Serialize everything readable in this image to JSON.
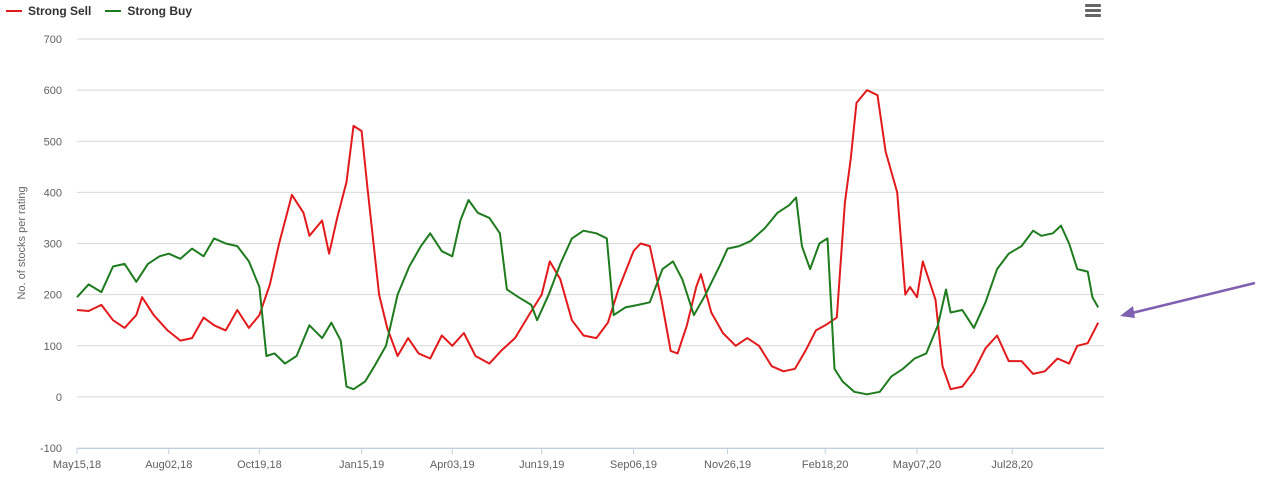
{
  "chart_data": {
    "type": "line",
    "ylabel": "No. of stocks per rating",
    "ylim": [
      -100,
      700
    ],
    "yticks": [
      -100,
      0,
      100,
      200,
      300,
      400,
      500,
      600,
      700
    ],
    "xlim": [
      "2018-05-15",
      "2020-10-15"
    ],
    "xticks": [
      {
        "date": "2018-05-15",
        "label": "May15,18"
      },
      {
        "date": "2018-08-02",
        "label": "Aug02,18"
      },
      {
        "date": "2018-10-19",
        "label": "Oct19,18"
      },
      {
        "date": "2019-01-15",
        "label": "Jan15,19"
      },
      {
        "date": "2019-04-03",
        "label": "Apr03,19"
      },
      {
        "date": "2019-06-19",
        "label": "Jun19,19"
      },
      {
        "date": "2019-09-06",
        "label": "Sep06,19"
      },
      {
        "date": "2019-11-26",
        "label": "Nov26,19"
      },
      {
        "date": "2020-02-18",
        "label": "Feb18,20"
      },
      {
        "date": "2020-05-07",
        "label": "May07,20"
      },
      {
        "date": "2020-07-28",
        "label": "Jul28,20"
      }
    ],
    "grid": true,
    "legend": "top-left",
    "series": [
      {
        "name": "Strong Sell",
        "color": "#e31a1c",
        "points": [
          [
            "2018-05-15",
            170
          ],
          [
            "2018-05-25",
            168
          ],
          [
            "2018-06-05",
            180
          ],
          [
            "2018-06-15",
            150
          ],
          [
            "2018-06-25",
            135
          ],
          [
            "2018-07-05",
            160
          ],
          [
            "2018-07-10",
            195
          ],
          [
            "2018-07-20",
            160
          ],
          [
            "2018-08-01",
            130
          ],
          [
            "2018-08-12",
            110
          ],
          [
            "2018-08-22",
            115
          ],
          [
            "2018-09-01",
            155
          ],
          [
            "2018-09-10",
            140
          ],
          [
            "2018-09-20",
            130
          ],
          [
            "2018-09-30",
            170
          ],
          [
            "2018-10-10",
            135
          ],
          [
            "2018-10-19",
            160
          ],
          [
            "2018-10-28",
            220
          ],
          [
            "2018-11-05",
            300
          ],
          [
            "2018-11-16",
            395
          ],
          [
            "2018-11-26",
            360
          ],
          [
            "2018-12-01",
            315
          ],
          [
            "2018-12-12",
            345
          ],
          [
            "2018-12-18",
            280
          ],
          [
            "2018-12-25",
            350
          ],
          [
            "2019-01-02",
            420
          ],
          [
            "2019-01-08",
            530
          ],
          [
            "2019-01-15",
            520
          ],
          [
            "2019-01-20",
            410
          ],
          [
            "2019-01-30",
            200
          ],
          [
            "2019-02-06",
            135
          ],
          [
            "2019-02-15",
            80
          ],
          [
            "2019-02-24",
            115
          ],
          [
            "2019-03-05",
            85
          ],
          [
            "2019-03-15",
            75
          ],
          [
            "2019-03-25",
            120
          ],
          [
            "2019-04-03",
            100
          ],
          [
            "2019-04-13",
            125
          ],
          [
            "2019-04-23",
            80
          ],
          [
            "2019-05-05",
            65
          ],
          [
            "2019-05-15",
            90
          ],
          [
            "2019-05-27",
            115
          ],
          [
            "2019-06-08",
            160
          ],
          [
            "2019-06-19",
            200
          ],
          [
            "2019-06-26",
            265
          ],
          [
            "2019-07-05",
            230
          ],
          [
            "2019-07-15",
            150
          ],
          [
            "2019-07-25",
            120
          ],
          [
            "2019-08-05",
            115
          ],
          [
            "2019-08-15",
            145
          ],
          [
            "2019-08-24",
            210
          ],
          [
            "2019-09-06",
            285
          ],
          [
            "2019-09-12",
            300
          ],
          [
            "2019-09-20",
            295
          ],
          [
            "2019-09-30",
            190
          ],
          [
            "2019-10-08",
            90
          ],
          [
            "2019-10-14",
            85
          ],
          [
            "2019-10-22",
            140
          ],
          [
            "2019-10-30",
            215
          ],
          [
            "2019-11-03",
            240
          ],
          [
            "2019-11-12",
            165
          ],
          [
            "2019-11-22",
            125
          ],
          [
            "2019-12-03",
            100
          ],
          [
            "2019-12-13",
            115
          ],
          [
            "2019-12-23",
            100
          ],
          [
            "2020-01-03",
            60
          ],
          [
            "2020-01-13",
            50
          ],
          [
            "2020-01-23",
            55
          ],
          [
            "2020-02-01",
            90
          ],
          [
            "2020-02-10",
            130
          ],
          [
            "2020-02-18",
            140
          ],
          [
            "2020-02-28",
            155
          ],
          [
            "2020-03-06",
            380
          ],
          [
            "2020-03-11",
            465
          ],
          [
            "2020-03-16",
            575
          ],
          [
            "2020-03-25",
            600
          ],
          [
            "2020-04-03",
            590
          ],
          [
            "2020-04-10",
            480
          ],
          [
            "2020-04-20",
            400
          ],
          [
            "2020-04-27",
            200
          ],
          [
            "2020-05-01",
            215
          ],
          [
            "2020-05-07",
            195
          ],
          [
            "2020-05-12",
            265
          ],
          [
            "2020-05-23",
            190
          ],
          [
            "2020-05-29",
            60
          ],
          [
            "2020-06-05",
            15
          ],
          [
            "2020-06-15",
            20
          ],
          [
            "2020-06-25",
            50
          ],
          [
            "2020-07-05",
            95
          ],
          [
            "2020-07-15",
            120
          ],
          [
            "2020-07-25",
            70
          ],
          [
            "2020-08-05",
            70
          ],
          [
            "2020-08-15",
            45
          ],
          [
            "2020-08-25",
            50
          ],
          [
            "2020-09-05",
            75
          ],
          [
            "2020-09-15",
            65
          ],
          [
            "2020-09-22",
            100
          ],
          [
            "2020-10-01",
            105
          ],
          [
            "2020-10-10",
            145
          ]
        ]
      },
      {
        "name": "Strong Buy",
        "color": "#1e7b1e",
        "points": [
          [
            "2018-05-15",
            195
          ],
          [
            "2018-05-25",
            220
          ],
          [
            "2018-06-05",
            205
          ],
          [
            "2018-06-15",
            255
          ],
          [
            "2018-06-25",
            260
          ],
          [
            "2018-07-05",
            225
          ],
          [
            "2018-07-15",
            260
          ],
          [
            "2018-07-25",
            275
          ],
          [
            "2018-08-02",
            280
          ],
          [
            "2018-08-12",
            270
          ],
          [
            "2018-08-22",
            290
          ],
          [
            "2018-09-01",
            275
          ],
          [
            "2018-09-10",
            310
          ],
          [
            "2018-09-20",
            300
          ],
          [
            "2018-09-30",
            295
          ],
          [
            "2018-10-10",
            265
          ],
          [
            "2018-10-19",
            215
          ],
          [
            "2018-10-25",
            80
          ],
          [
            "2018-11-01",
            85
          ],
          [
            "2018-11-10",
            65
          ],
          [
            "2018-11-20",
            80
          ],
          [
            "2018-12-01",
            140
          ],
          [
            "2018-12-12",
            115
          ],
          [
            "2018-12-20",
            145
          ],
          [
            "2018-12-28",
            110
          ],
          [
            "2019-01-02",
            20
          ],
          [
            "2019-01-08",
            15
          ],
          [
            "2019-01-18",
            30
          ],
          [
            "2019-01-26",
            60
          ],
          [
            "2019-02-05",
            100
          ],
          [
            "2019-02-15",
            200
          ],
          [
            "2019-02-25",
            255
          ],
          [
            "2019-03-07",
            295
          ],
          [
            "2019-03-15",
            320
          ],
          [
            "2019-03-25",
            285
          ],
          [
            "2019-04-03",
            275
          ],
          [
            "2019-04-10",
            345
          ],
          [
            "2019-04-17",
            385
          ],
          [
            "2019-04-25",
            360
          ],
          [
            "2019-05-05",
            350
          ],
          [
            "2019-05-14",
            320
          ],
          [
            "2019-05-20",
            210
          ],
          [
            "2019-05-30",
            195
          ],
          [
            "2019-06-10",
            180
          ],
          [
            "2019-06-15",
            150
          ],
          [
            "2019-06-25",
            200
          ],
          [
            "2019-07-05",
            260
          ],
          [
            "2019-07-15",
            310
          ],
          [
            "2019-07-25",
            325
          ],
          [
            "2019-08-05",
            320
          ],
          [
            "2019-08-14",
            310
          ],
          [
            "2019-08-20",
            160
          ],
          [
            "2019-08-30",
            175
          ],
          [
            "2019-09-10",
            180
          ],
          [
            "2019-09-20",
            185
          ],
          [
            "2019-10-01",
            250
          ],
          [
            "2019-10-10",
            265
          ],
          [
            "2019-10-18",
            230
          ],
          [
            "2019-10-28",
            160
          ],
          [
            "2019-11-07",
            200
          ],
          [
            "2019-11-20",
            260
          ],
          [
            "2019-11-26",
            290
          ],
          [
            "2019-12-06",
            295
          ],
          [
            "2019-12-16",
            305
          ],
          [
            "2019-12-28",
            330
          ],
          [
            "2020-01-08",
            360
          ],
          [
            "2020-01-18",
            375
          ],
          [
            "2020-01-24",
            390
          ],
          [
            "2020-01-29",
            295
          ],
          [
            "2020-02-05",
            250
          ],
          [
            "2020-02-13",
            300
          ],
          [
            "2020-02-20",
            310
          ],
          [
            "2020-02-26",
            55
          ],
          [
            "2020-03-04",
            30
          ],
          [
            "2020-03-14",
            10
          ],
          [
            "2020-03-25",
            5
          ],
          [
            "2020-04-05",
            10
          ],
          [
            "2020-04-15",
            40
          ],
          [
            "2020-04-25",
            55
          ],
          [
            "2020-05-05",
            75
          ],
          [
            "2020-05-15",
            85
          ],
          [
            "2020-05-25",
            140
          ],
          [
            "2020-06-01",
            210
          ],
          [
            "2020-06-05",
            165
          ],
          [
            "2020-06-15",
            170
          ],
          [
            "2020-06-25",
            135
          ],
          [
            "2020-07-05",
            185
          ],
          [
            "2020-07-15",
            250
          ],
          [
            "2020-07-25",
            280
          ],
          [
            "2020-08-05",
            295
          ],
          [
            "2020-08-15",
            325
          ],
          [
            "2020-08-22",
            315
          ],
          [
            "2020-09-01",
            320
          ],
          [
            "2020-09-08",
            335
          ],
          [
            "2020-09-15",
            300
          ],
          [
            "2020-09-22",
            250
          ],
          [
            "2020-10-01",
            245
          ],
          [
            "2020-10-05",
            195
          ],
          [
            "2020-10-10",
            175
          ]
        ]
      }
    ]
  }
}
